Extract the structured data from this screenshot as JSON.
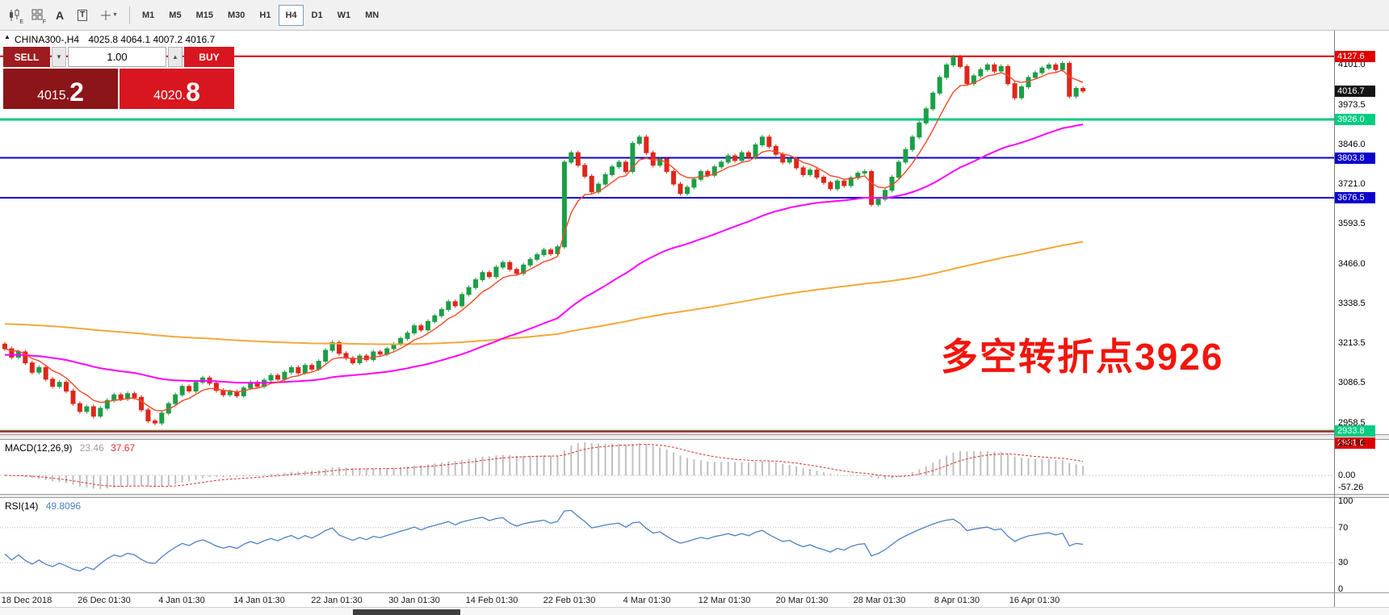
{
  "toolbar": {
    "icon_sub_e": "E",
    "icon_sub_f": "F",
    "icon_a": "A",
    "icon_t": "T",
    "timeframes": [
      "M1",
      "M5",
      "M15",
      "M30",
      "H1",
      "H4",
      "D1",
      "W1",
      "MN"
    ],
    "active_timeframe": "H4"
  },
  "trade_panel": {
    "collapse_marker": "▲",
    "sell_label": "SELL",
    "buy_label": "BUY",
    "volume": "1.00",
    "caret_down": "▼",
    "caret_up": "▲",
    "sell_price_small": "4015.",
    "sell_price_big": "2",
    "buy_price_small": "4020.",
    "buy_price_big": "8"
  },
  "chart": {
    "title": "CHINA300-,H4",
    "ohlc_text": "4025.8 4064.1 4007.2 4016.7",
    "annotation": {
      "text": "多空转折点3926",
      "color": "#f2150c"
    },
    "price_boxes": [
      {
        "value": 4127.6,
        "bg": "#dd0000"
      },
      {
        "value": 4016.7,
        "bg": "#141414"
      },
      {
        "value": 3926.0,
        "bg": "#00cd82"
      },
      {
        "value": 3803.8,
        "bg": "#0d00cc"
      },
      {
        "value": 3676.5,
        "bg": "#0d00cc"
      },
      {
        "value": 2933.8,
        "bg": "#00cd82"
      },
      {
        "value": 2931.0,
        "bg": "#dd0000"
      }
    ]
  },
  "macd": {
    "label": "MACD(12,26,9)",
    "value_main": "23.46",
    "value_signal": "37.67",
    "axis": [
      "121.84",
      "0.00",
      "-57.26"
    ]
  },
  "rsi": {
    "label": "RSI(14)",
    "value": "49.8096",
    "axis": [
      "100",
      "70",
      "30",
      "0"
    ]
  },
  "chart_data": {
    "type": "candlestick",
    "symbol": "CHINA300-",
    "timeframe": "H4",
    "current_bar": {
      "open": 4025.8,
      "high": 4064.1,
      "low": 4007.2,
      "close": 4016.7
    },
    "y_ticks": [
      4101.0,
      3973.5,
      3846.0,
      3721.0,
      3593.5,
      3466.0,
      3338.5,
      3213.5,
      3086.5,
      2958.5
    ],
    "x_labels": [
      "18 Dec 2018",
      "26 Dec 01:30",
      "4 Jan 01:30",
      "14 Jan 01:30",
      "22 Jan 01:30",
      "30 Jan 01:30",
      "14 Feb 01:30",
      "22 Feb 01:30",
      "4 Mar 01:30",
      "12 Mar 01:30",
      "20 Mar 01:30",
      "28 Mar 01:30",
      "8 Apr 01:30",
      "16 Apr 01:30"
    ],
    "first_open": 3210,
    "wick": 7,
    "closes": [
      3195,
      3168,
      3185,
      3150,
      3120,
      3135,
      3098,
      3075,
      3088,
      3060,
      3020,
      2995,
      3010,
      2980,
      3005,
      3030,
      3048,
      3035,
      3052,
      3040,
      3000,
      2965,
      2958,
      2990,
      3020,
      3048,
      3075,
      3060,
      3088,
      3102,
      3085,
      3062,
      3048,
      3058,
      3045,
      3070,
      3088,
      3075,
      3095,
      3110,
      3098,
      3120,
      3135,
      3118,
      3142,
      3130,
      3155,
      3190,
      3215,
      3180,
      3165,
      3150,
      3172,
      3160,
      3185,
      3178,
      3195,
      3210,
      3228,
      3245,
      3268,
      3255,
      3282,
      3300,
      3320,
      3345,
      3332,
      3368,
      3390,
      3415,
      3438,
      3425,
      3455,
      3470,
      3448,
      3435,
      3462,
      3480,
      3495,
      3510,
      3498,
      3520,
      3790,
      3820,
      3780,
      3745,
      3695,
      3720,
      3750,
      3775,
      3790,
      3760,
      3850,
      3870,
      3820,
      3780,
      3800,
      3760,
      3720,
      3690,
      3710,
      3735,
      3760,
      3748,
      3775,
      3790,
      3810,
      3795,
      3820,
      3805,
      3845,
      3870,
      3840,
      3815,
      3790,
      3800,
      3772,
      3750,
      3765,
      3742,
      3725,
      3705,
      3730,
      3715,
      3740,
      3755,
      3760,
      3655,
      3672,
      3700,
      3742,
      3790,
      3830,
      3870,
      3915,
      3960,
      4010,
      4060,
      4100,
      4125,
      4095,
      4040,
      4065,
      4085,
      4100,
      4080,
      4095,
      4040,
      3995,
      4030,
      4060,
      4075,
      4090,
      4100,
      4085,
      4105,
      4000,
      4025,
      4016.7
    ],
    "up_color": "#1c9e47",
    "down_color": "#de271b",
    "ma_fast_color": "#f54927",
    "ma_mid_color": "#ff00ff",
    "ma_slow_color": "#f2a93b",
    "macd_hist_color": "#c0c0c0",
    "macd_signal_color": "#e03030",
    "rsi_color": "#4f81c7",
    "horizontal_lines": [
      {
        "value": 4127.6,
        "color": "#dd0000",
        "width": 2
      },
      {
        "value": 3926.0,
        "color": "#00cd82",
        "width": 3
      },
      {
        "value": 3803.8,
        "color": "#0d00cc",
        "width": 2
      },
      {
        "value": 3676.5,
        "color": "#0d00cc",
        "width": 2
      },
      {
        "value": 2933.8,
        "color": "#00cd82",
        "width": 2
      },
      {
        "value": 2931.0,
        "color": "#dd0000",
        "width": 2
      }
    ],
    "indicators": [
      {
        "name": "MACD",
        "params": [
          12,
          26,
          9
        ],
        "last_values": [
          23.46,
          37.67
        ],
        "scale": [
          121.84,
          0.0,
          -57.26
        ]
      },
      {
        "name": "RSI",
        "params": [
          14
        ],
        "last_value": 49.8096,
        "scale": [
          100,
          70,
          30,
          0
        ]
      }
    ]
  }
}
